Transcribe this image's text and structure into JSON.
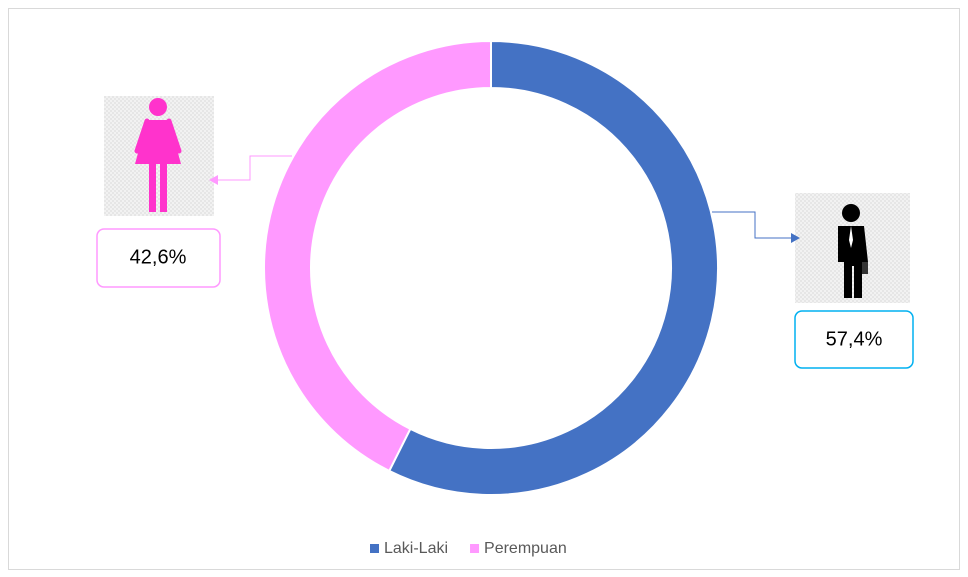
{
  "chart_data": {
    "type": "donut",
    "categories": [
      "Laki-Laki",
      "Perempuan"
    ],
    "values": [
      57.4,
      42.6
    ],
    "value_labels": [
      "57,4%",
      "42,6%"
    ],
    "colors": [
      "#4472c4",
      "#ff99ff"
    ],
    "legend": "bottom"
  }
}
